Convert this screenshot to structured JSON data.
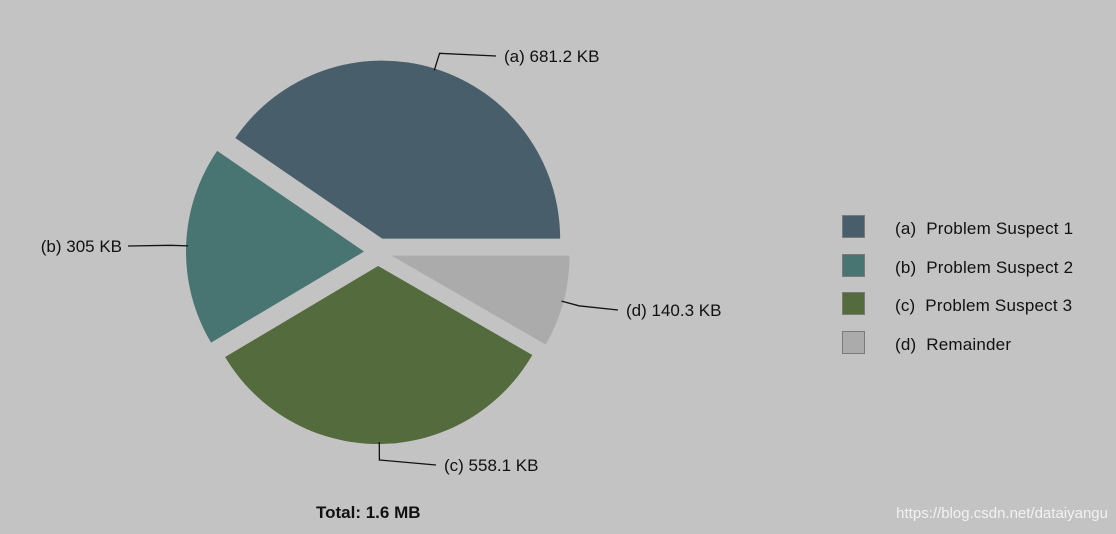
{
  "chart_data": {
    "type": "pie",
    "slices": [
      {
        "key": "(a)",
        "name": "Problem Suspect 1",
        "value_label": "681.2 KB",
        "value_kb": 681.2,
        "color": "#485f6b"
      },
      {
        "key": "(b)",
        "name": "Problem Suspect 2",
        "value_label": "305 KB",
        "value_kb": 305,
        "color": "#487472"
      },
      {
        "key": "(c)",
        "name": "Problem Suspect 3",
        "value_label": "558.1 KB",
        "value_kb": 558.1,
        "color": "#536b3d"
      },
      {
        "key": "(d)",
        "name": "Remainder",
        "value_label": "140.3 KB",
        "value_kb": 140.3,
        "color": "#ababab"
      }
    ],
    "total_label": "Total: 1.6 MB",
    "legend_position": "right",
    "exploded": true
  },
  "watermark": "https://blog.csdn.net/dataiyangu"
}
